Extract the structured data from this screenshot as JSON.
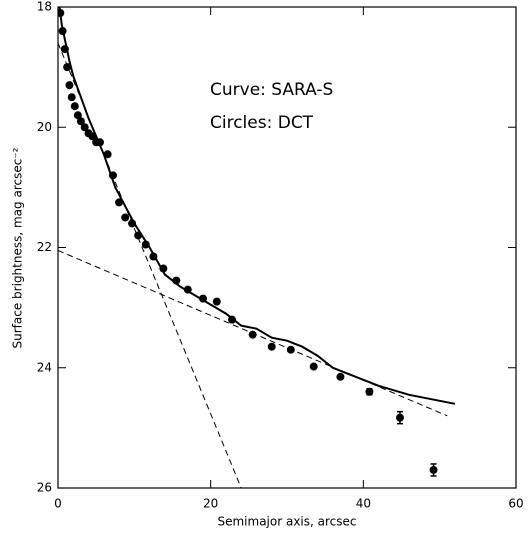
{
  "chart_data": {
    "type": "scatter",
    "xlabel": "Semimajor axis, arcsec",
    "ylabel": "Surface brightness, mag arcsec⁻²",
    "annotations": [
      "Curve: SARA-S",
      "Circles: DCT"
    ],
    "xlim": [
      0,
      60
    ],
    "xticks": [
      0,
      20,
      40,
      60
    ],
    "ylim": [
      26,
      18
    ],
    "yticks": [
      18,
      20,
      22,
      24,
      26
    ],
    "color": "#000000",
    "points": {
      "x": [
        0.3,
        0.6,
        0.9,
        1.2,
        1.5,
        1.8,
        2.2,
        2.6,
        3.0,
        3.5,
        4.0,
        4.5,
        5.0,
        5.5,
        6.5,
        7.2,
        8.0,
        8.8,
        9.7,
        10.5,
        11.5,
        12.5,
        13.8,
        15.5,
        17.0,
        19.0,
        20.8,
        22.8,
        25.5,
        28.0,
        30.5,
        33.5,
        37.0,
        40.8,
        44.8,
        49.2
      ],
      "y": [
        18.1,
        18.4,
        18.7,
        19.0,
        19.3,
        19.5,
        19.65,
        19.8,
        19.9,
        20.0,
        20.1,
        20.15,
        20.25,
        20.25,
        20.45,
        20.8,
        21.25,
        21.5,
        21.6,
        21.8,
        21.95,
        22.15,
        22.35,
        22.55,
        22.7,
        22.85,
        22.9,
        23.2,
        23.45,
        23.65,
        23.7,
        23.98,
        24.15,
        24.4,
        24.83,
        25.7
      ],
      "yerr": [
        null,
        null,
        null,
        null,
        null,
        null,
        null,
        null,
        null,
        null,
        null,
        null,
        null,
        null,
        null,
        null,
        null,
        null,
        null,
        null,
        null,
        null,
        null,
        null,
        null,
        null,
        null,
        null,
        null,
        null,
        null,
        null,
        null,
        0.05,
        0.1,
        0.1
      ]
    },
    "curve": {
      "x": [
        0.2,
        0.5,
        1.0,
        1.5,
        2.0,
        3.0,
        4.0,
        5.0,
        6.0,
        7.5,
        10,
        12,
        14,
        16,
        18,
        20,
        22,
        24,
        26,
        28,
        30,
        32,
        34,
        36,
        38,
        40,
        42,
        46,
        52
      ],
      "y": [
        18.0,
        18.3,
        18.6,
        18.9,
        19.15,
        19.5,
        19.85,
        20.15,
        20.45,
        21.0,
        21.6,
        22.0,
        22.45,
        22.65,
        22.8,
        22.95,
        23.1,
        23.3,
        23.35,
        23.5,
        23.55,
        23.65,
        23.8,
        24.0,
        24.1,
        24.2,
        24.3,
        24.45,
        24.6
      ]
    },
    "fits": [
      {
        "x": [
          0,
          24
        ],
        "y": [
          18.6,
          26
        ]
      },
      {
        "x": [
          0,
          51
        ],
        "y": [
          22.05,
          24.8
        ]
      }
    ]
  }
}
